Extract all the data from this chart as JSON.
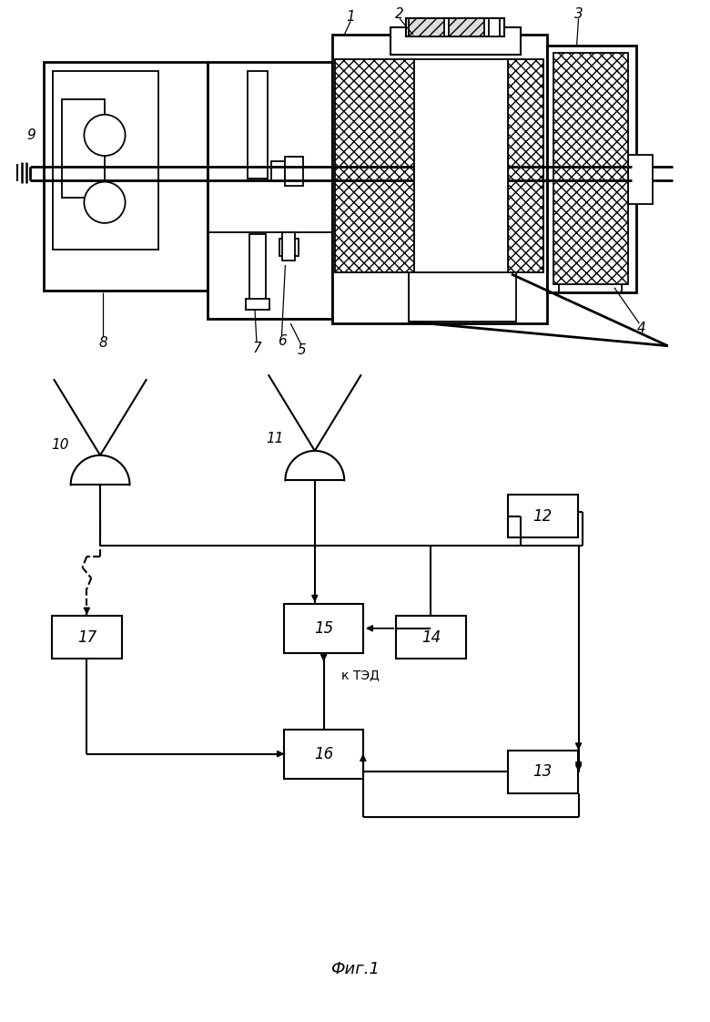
{
  "fig_width": 7.8,
  "fig_height": 11.22,
  "dpi": 100,
  "bg_color": "#ffffff"
}
